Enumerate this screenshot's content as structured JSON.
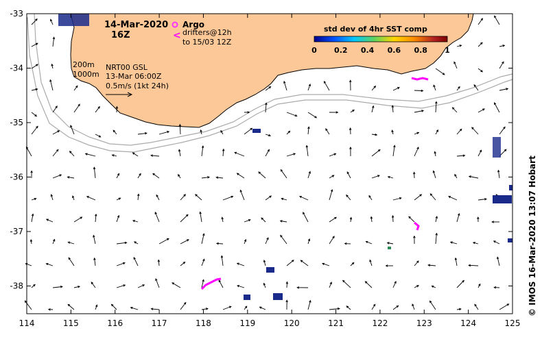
{
  "map": {
    "title_date": "14-Mar-2020",
    "title_time": "16Z",
    "argo_label": "Argo",
    "drifters_line1": "drifters@12h",
    "drifters_line2": "to 15/03 12Z",
    "colorbar_title": "std dev of 4hr SST comp",
    "colorbar_ticks": [
      "0",
      "0.2",
      "0.4",
      "0.6",
      "0.8",
      "1"
    ],
    "contour_200": "200m",
    "contour_1000": "1000m",
    "product_line1": "NRT00 GSL",
    "product_line2": "13-Mar 06:00Z",
    "scale_label": "0.5m/s (1kt 24h)",
    "credit": "© IMOS 16-Mar-2020 13:07 Hobart",
    "x_ticks": [
      "114",
      "115",
      "116",
      "117",
      "118",
      "119",
      "120",
      "121",
      "122",
      "123",
      "124",
      "125"
    ],
    "y_ticks": [
      "-33",
      "-34",
      "-35",
      "-36",
      "-37",
      "-38"
    ],
    "land_color": "#fcc898",
    "argo_color": "#ff33ff",
    "drifter_color": "#ff00ff",
    "colorbar_colors": [
      "#00008b",
      "#0050ff",
      "#00c8ff",
      "#5fd35f",
      "#ffd700",
      "#ff8c00",
      "#b22222",
      "#7a0000"
    ]
  }
}
